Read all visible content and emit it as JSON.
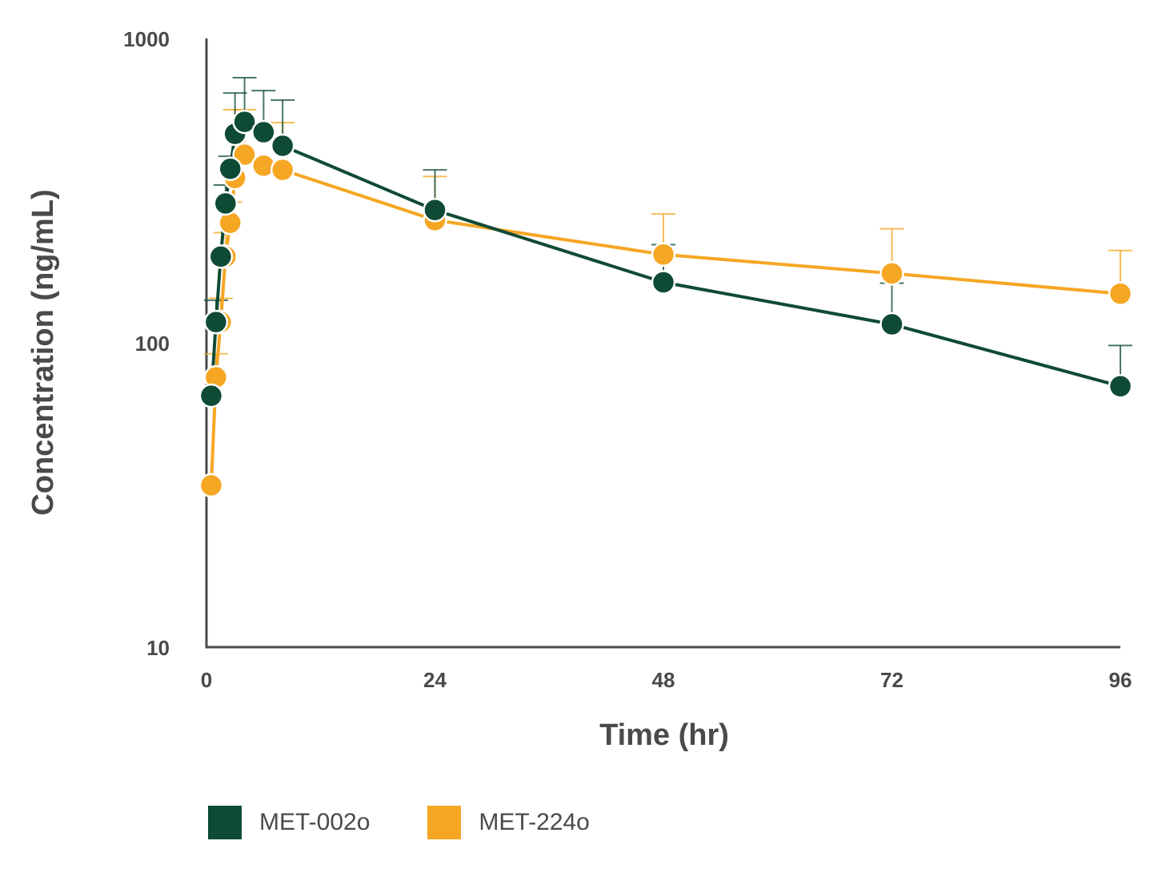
{
  "chart_data": {
    "type": "line",
    "title": "",
    "xlabel": "Time (hr)",
    "ylabel": "Concentration (ng/mL)",
    "xlim": [
      0,
      96
    ],
    "ylim": [
      10,
      1000
    ],
    "yscale": "log",
    "xticks": [
      0,
      24,
      48,
      72,
      96
    ],
    "xtick_labels": [
      "0",
      "24",
      "48",
      "72",
      "96"
    ],
    "yticks": [
      10,
      100,
      1000
    ],
    "ytick_labels": [
      "10",
      "100",
      "1000"
    ],
    "grid": false,
    "legend_position": "bottom-left",
    "series": [
      {
        "name": "MET-002o",
        "color": "#0f4a35",
        "x": [
          0.5,
          1,
          1.5,
          2,
          2.5,
          3,
          4,
          6,
          8,
          24,
          48,
          72,
          96
        ],
        "y": [
          67,
          117,
          192,
          287,
          373,
          486,
          532,
          492,
          444,
          273,
          158,
          115,
          72
        ],
        "error_upper": [
          null,
          138,
          null,
          330,
          410,
          662,
          743,
          674,
          627,
          370,
          210,
          157,
          98
        ]
      },
      {
        "name": "MET-224o",
        "color": "#f5a623",
        "x": [
          0.5,
          1,
          1.5,
          2,
          2.5,
          3,
          4,
          6,
          8,
          24,
          48,
          72,
          96
        ],
        "y": [
          34,
          77,
          117,
          192,
          248,
          348,
          415,
          382,
          370,
          253,
          195,
          169,
          145
        ],
        "error_upper": [
          null,
          92,
          140,
          230,
          290,
          583,
          583,
          null,
          529,
          352,
          265,
          237,
          201
        ]
      }
    ]
  },
  "legend": {
    "items": [
      {
        "label": "MET-002o",
        "color": "#0f4a35"
      },
      {
        "label": "MET-224o",
        "color": "#f5a623"
      }
    ]
  }
}
